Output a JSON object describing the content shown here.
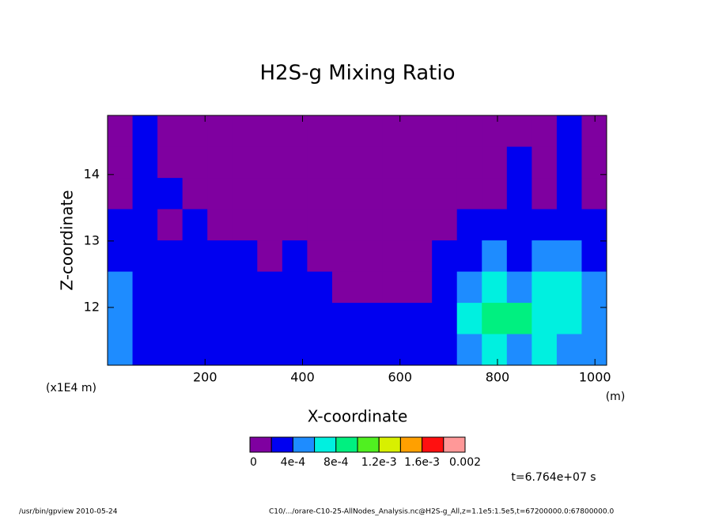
{
  "chart_data": {
    "type": "contour",
    "title": "H2S-g Mixing Ratio",
    "x_label": "X-coordinate",
    "y_label": "Z-coordinate",
    "x_unit": "(m)",
    "y_unit": "(x1E4 m)",
    "xlim": [
      0,
      1024
    ],
    "ylim": [
      11.13,
      14.89
    ],
    "xticks": [
      200,
      400,
      600,
      800,
      1000
    ],
    "yticks": [
      12,
      13,
      14
    ],
    "x": [
      25.6,
      76.8,
      128,
      179.2,
      230.4,
      281.6,
      332.8,
      384,
      435.2,
      486.4,
      537.6,
      588.8,
      640,
      691.2,
      742.4,
      793.6,
      844.8,
      896,
      947.2,
      998.4
    ],
    "y": [
      11.37,
      11.84,
      12.31,
      12.78,
      13.25,
      13.72,
      14.19,
      14.66
    ],
    "values": [
      [
        0.0005,
        0.0003,
        0.0003,
        0.0003,
        0.0003,
        0.0003,
        0.0003,
        0.0003,
        0.0003,
        0.0003,
        0.0003,
        0.0003,
        0.0003,
        0.0003,
        0.0005,
        0.0007,
        0.0005,
        0.0007,
        0.0005,
        0.0005
      ],
      [
        0.0005,
        0.0003,
        0.0003,
        0.0003,
        0.0003,
        0.0003,
        0.0003,
        0.0003,
        0.0003,
        0.0003,
        0.0003,
        0.0003,
        0.0003,
        0.0003,
        0.0007,
        0.0009,
        0.0009,
        0.0007,
        0.0007,
        0.0005
      ],
      [
        0.0005,
        0.0003,
        0.0003,
        0.0003,
        0.0003,
        0.0003,
        0.0003,
        0.0003,
        0.0003,
        0.0001,
        0.0001,
        0.0001,
        0.0001,
        0.0003,
        0.0005,
        0.0007,
        0.0005,
        0.0007,
        0.0007,
        0.0005
      ],
      [
        0.0003,
        0.0003,
        0.0003,
        0.0003,
        0.0003,
        0.0003,
        0.0001,
        0.0003,
        0.0001,
        0.0001,
        0.0001,
        0.0001,
        0.0001,
        0.0003,
        0.0003,
        0.0005,
        0.0003,
        0.0005,
        0.0005,
        0.0003
      ],
      [
        0.0003,
        0.0003,
        0.0001,
        0.0003,
        0.0001,
        0.0001,
        0.0001,
        0.0001,
        0.0001,
        0.0001,
        0.0001,
        0.0001,
        0.0001,
        0.0001,
        0.0003,
        0.0003,
        0.0003,
        0.0003,
        0.0003,
        0.0003
      ],
      [
        0.0001,
        0.0003,
        0.0003,
        0.0001,
        0.0001,
        0.0001,
        0.0001,
        0.0001,
        0.0001,
        0.0001,
        0.0001,
        0.0001,
        0.0001,
        0.0001,
        0.0001,
        0.0001,
        0.0003,
        0.0001,
        0.0003,
        0.0001
      ],
      [
        0.0001,
        0.0003,
        0.0001,
        0.0001,
        0.0001,
        0.0001,
        0.0001,
        0.0001,
        0.0001,
        0.0001,
        0.0001,
        0.0001,
        0.0001,
        0.0001,
        0.0001,
        0.0001,
        0.0003,
        0.0001,
        0.0003,
        0.0001
      ],
      [
        0.0001,
        0.0003,
        0.0001,
        0.0001,
        0.0001,
        0.0001,
        0.0001,
        0.0001,
        0.0001,
        0.0001,
        0.0001,
        0.0001,
        0.0001,
        0.0001,
        0.0001,
        0.0001,
        0.0001,
        0.0001,
        0.0003,
        0.0001
      ]
    ],
    "colorbar_ticks": [
      0,
      {
        "value": 0.0004,
        "label": "4e-4"
      },
      {
        "value": 0.0008,
        "label": "8e-4"
      },
      {
        "value": 0.0012,
        "label": "1.2e-3"
      },
      {
        "value": 0.0016,
        "label": "1.6e-3"
      },
      0.002
    ],
    "colors": [
      "#7f00a0",
      "#0000f0",
      "#1e8cff",
      "#00f0e0",
      "#00f080",
      "#50f020",
      "#d8f000",
      "#ffa000",
      "#ff1010",
      "#ff9898"
    ],
    "time_label": "t=6.764e+07 s",
    "footer_left": "/usr/bin/gpview  2010-05-24",
    "footer_right": "C10/.../orare-C10-25-AllNodes_Analysis.nc@H2S-g_All,z=1.1e5:1.5e5,t=67200000.0:67800000.0"
  }
}
